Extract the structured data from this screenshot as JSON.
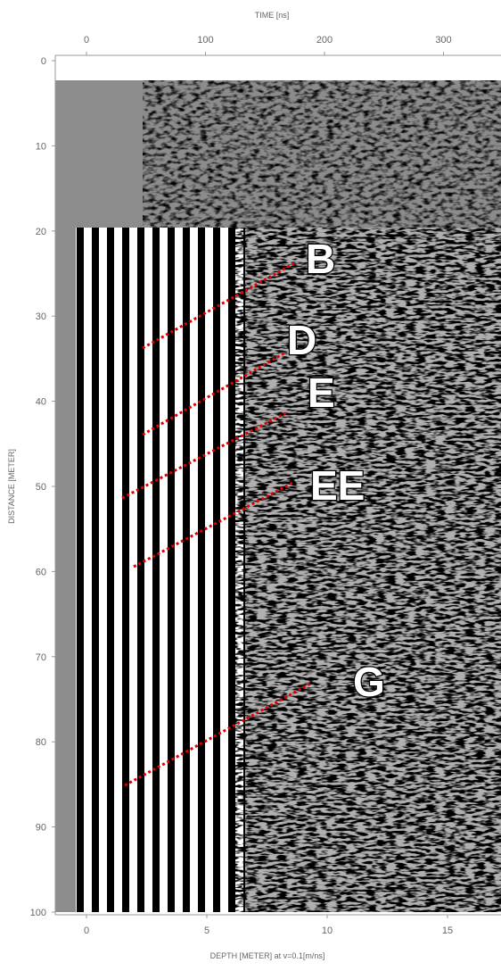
{
  "figure": {
    "top_axis": {
      "label": "TIME [ns]",
      "ticks": [
        0,
        100,
        200,
        300
      ]
    },
    "left_axis": {
      "label": "DISTANCE [METER]",
      "ticks": [
        0,
        10,
        20,
        30,
        40,
        50,
        60,
        70,
        80,
        90,
        100
      ]
    },
    "bottom_axis": {
      "label": "DEPTH [METER] at v=0.1[m/ns]",
      "ticks": [
        0,
        5,
        10,
        15
      ]
    },
    "annotations": [
      "B",
      "D",
      "E",
      "EE",
      "G"
    ]
  }
}
